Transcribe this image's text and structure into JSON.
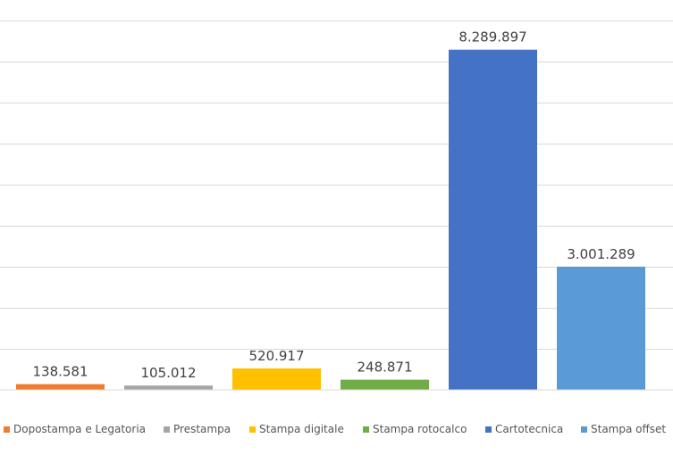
{
  "chart_data": {
    "type": "bar",
    "categories": [
      "Dopostampa e Legatoria",
      "Prestampa",
      "Stampa digitale",
      "Stampa rotocalco",
      "Cartotecnica",
      "Stampa offset"
    ],
    "values": [
      138581,
      105012,
      520917,
      248871,
      8289897,
      3001289
    ],
    "data_labels": [
      "138.581",
      "105.012",
      "520.917",
      "248.871",
      "8.289.897",
      "3.001.289"
    ],
    "colors": [
      "#ED7D31",
      "#A5A5A5",
      "#FFC000",
      "#70AD47",
      "#4472C4",
      "#5B9BD5"
    ],
    "ylim": [
      0,
      9000000
    ],
    "grid": true,
    "legend": "bottom",
    "title": "",
    "xlabel": "",
    "ylabel": ""
  }
}
